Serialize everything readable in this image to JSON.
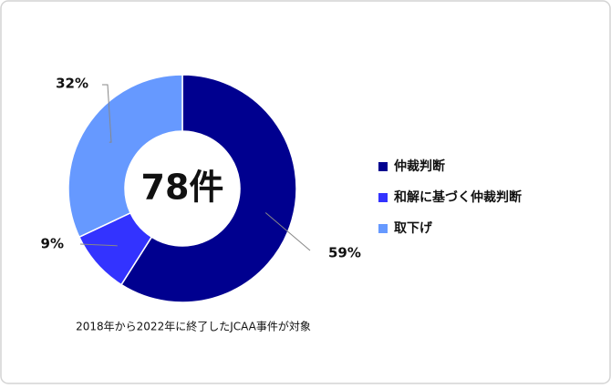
{
  "chart_data": {
    "type": "donut",
    "categories": [
      "仲裁判断",
      "和解に基づく仲裁判断",
      "取下げ"
    ],
    "values": [
      59,
      9,
      32
    ],
    "value_labels": [
      "59%",
      "9%",
      "32%"
    ],
    "colors": [
      "#00008f",
      "#3333ff",
      "#6699ff"
    ],
    "center_label": "78件",
    "note": "2018年から2022年に終了したJCAA事件が対象"
  }
}
